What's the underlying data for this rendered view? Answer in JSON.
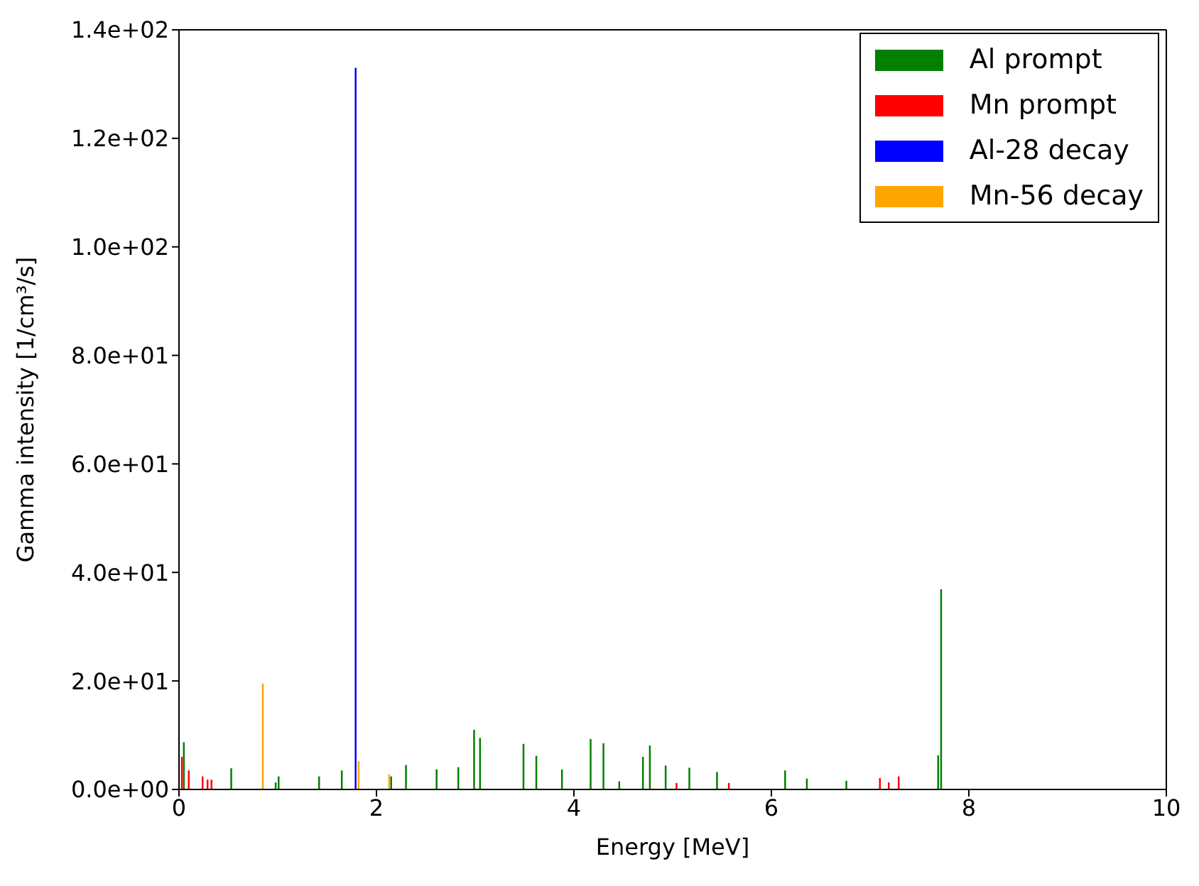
{
  "chart_data": {
    "type": "bar",
    "xlabel": "Energy [MeV]",
    "ylabel": "Gamma intensity [1/cm³/s]",
    "xlim": [
      0,
      10
    ],
    "xticks": [
      0,
      2,
      4,
      6,
      8,
      10
    ],
    "ylim": [
      0,
      140
    ],
    "yticks": [
      {
        "value": 0,
        "label": "0.0e+00"
      },
      {
        "value": 20,
        "label": "2.0e+01"
      },
      {
        "value": 40,
        "label": "4.0e+01"
      },
      {
        "value": 60,
        "label": "6.0e+01"
      },
      {
        "value": 80,
        "label": "8.0e+01"
      },
      {
        "value": 100,
        "label": "1.0e+02"
      },
      {
        "value": 120,
        "label": "1.2e+02"
      },
      {
        "value": 140,
        "label": "1.4e+02"
      }
    ],
    "grid": false,
    "legend": "top right",
    "series": [
      {
        "name": "Al prompt",
        "color": "#008000",
        "x": [
          0.05,
          0.53,
          0.98,
          1.01,
          1.42,
          1.65,
          2.15,
          2.3,
          2.61,
          2.83,
          2.99,
          3.05,
          3.49,
          3.62,
          3.88,
          4.17,
          4.3,
          4.46,
          4.7,
          4.77,
          4.93,
          5.17,
          5.45,
          6.14,
          6.36,
          6.76,
          7.69,
          7.72
        ],
        "values": [
          8.7,
          3.9,
          1.3,
          2.4,
          2.4,
          3.5,
          2.4,
          4.5,
          3.7,
          4.1,
          11.0,
          9.5,
          8.4,
          6.2,
          3.7,
          9.3,
          8.5,
          1.5,
          6.0,
          8.1,
          4.4,
          4.0,
          3.2,
          3.5,
          2.0,
          1.6,
          6.3,
          36.9
        ]
      },
      {
        "name": "Mn prompt",
        "color": "#ff0000",
        "x": [
          0.03,
          0.1,
          0.24,
          0.29,
          0.33,
          5.04,
          5.57,
          7.1,
          7.19,
          7.29
        ],
        "values": [
          6.0,
          3.5,
          2.4,
          1.8,
          1.8,
          1.2,
          1.2,
          2.1,
          1.3,
          2.4
        ]
      },
      {
        "name": "Al-28 decay",
        "color": "#0000ff",
        "x": [
          1.79
        ],
        "values": [
          133
        ]
      },
      {
        "name": "Mn-56 decay",
        "color": "#ffa500",
        "x": [
          0.85,
          1.82,
          2.13
        ],
        "values": [
          19.5,
          5.2,
          2.8
        ]
      }
    ]
  }
}
